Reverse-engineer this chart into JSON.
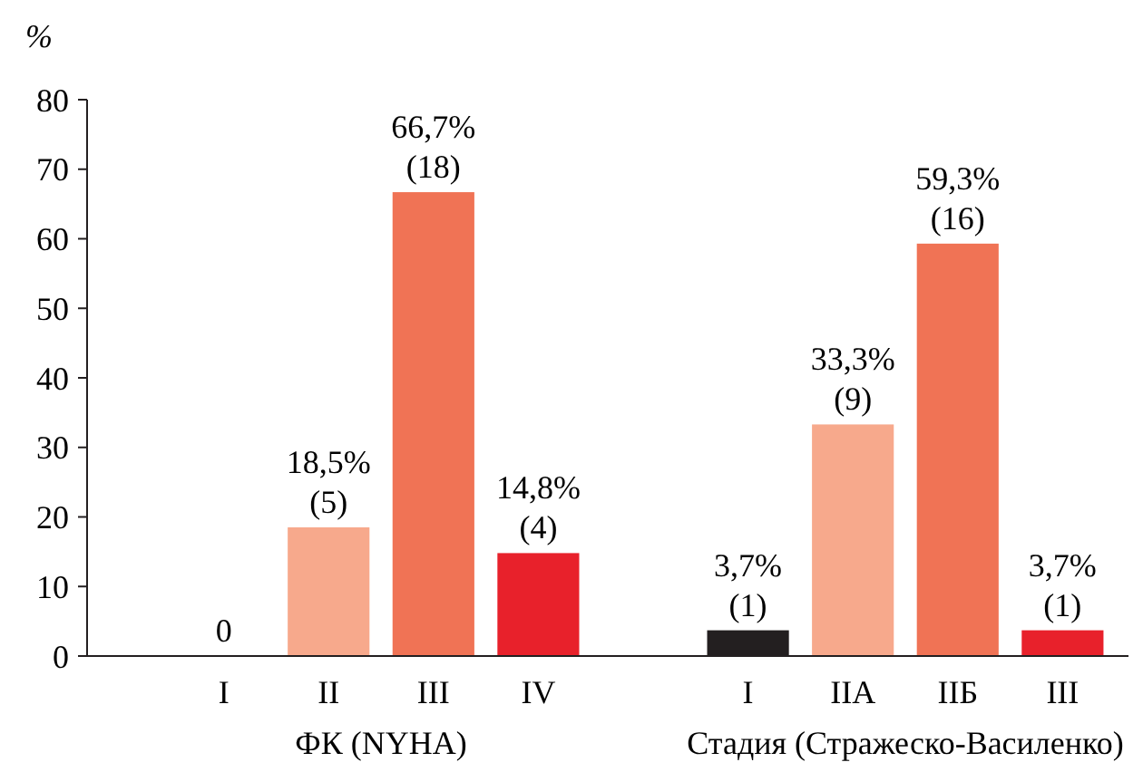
{
  "chart_data": {
    "type": "bar",
    "ylabel": "%",
    "categories": [
      "I",
      "II",
      "III",
      "IV",
      null,
      "I",
      "IIA",
      "IIБ",
      "III"
    ],
    "values": [
      0,
      18.5,
      66.7,
      14.8,
      null,
      3.7,
      33.3,
      59.3,
      3.7
    ],
    "colors": [
      "#f7a98c",
      "#f7a98c",
      "#f07355",
      "#e8212b",
      null,
      "#231f20",
      "#f7a98c",
      "#f07355",
      "#e8212b"
    ],
    "value_labels": [
      "0",
      "18,5%\n(5)",
      "66,7%\n(18)",
      "14,8%\n(4)",
      null,
      "3,7%\n(1)",
      "33,3%\n(9)",
      "59,3%\n(16)",
      "3,7%\n(1)"
    ],
    "ylim": [
      0,
      80
    ],
    "yticks": [
      0,
      10,
      20,
      30,
      40,
      50,
      60,
      70,
      80
    ],
    "grid": false,
    "annotations": [
      "ФК (NYHA)",
      "Стадия (Стражеско-Василенко)"
    ]
  }
}
